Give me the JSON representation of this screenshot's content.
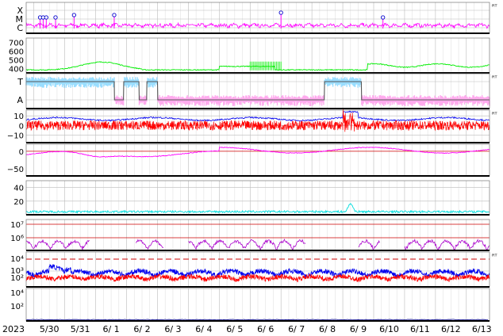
{
  "year_label": "2023",
  "right_marker": "ᴿᵀ",
  "chart_data": {
    "type": "line",
    "x_ticks": [
      "5/30",
      "5/31",
      "6/ 1",
      "6/ 2",
      "6/ 3",
      "6/ 4",
      "6/ 5",
      "6/ 6",
      "6/ 7",
      "6/ 8",
      "6/ 9",
      "6/10",
      "6/11",
      "6/12",
      "6/13"
    ],
    "grid": true,
    "colors": {
      "magenta": "#ff00ff",
      "green": "#00ee00",
      "lightblue": "#99ddff",
      "pink": "#ffaaee",
      "grey": "#555555",
      "red": "#ff0000",
      "blue": "#0000ee",
      "cyan": "#00dddd",
      "purple": "#aa00cc",
      "navy": "#000088"
    },
    "panels": [
      {
        "id": "flare",
        "labels": [
          "X",
          "M",
          "C"
        ],
        "right_marker": true,
        "events_day": [
          0.2,
          0.3,
          0.4,
          0.7,
          1.3,
          2.6,
          8.0,
          11.3
        ]
      },
      {
        "id": "speed",
        "ticks": [
          "700",
          "600",
          "500",
          "400"
        ],
        "ylim": [
          350,
          750
        ]
      },
      {
        "id": "sector",
        "labels": [
          "T",
          "A"
        ],
        "right_marker": true
      },
      {
        "id": "bfield",
        "ticks": [
          "10",
          "0",
          "−10"
        ],
        "ylim": [
          -18,
          16
        ],
        "right_marker": true
      },
      {
        "id": "bz",
        "ticks": [
          "0",
          "−50"
        ],
        "ylim": [
          -70,
          20
        ]
      },
      {
        "id": "density",
        "ticks": [
          "40",
          "20"
        ],
        "ylim": [
          0,
          50
        ]
      },
      {
        "id": "proton",
        "ticks": [
          "10⁷",
          "10⁶"
        ],
        "log": true
      },
      {
        "id": "electron",
        "ticks": [
          "10⁴",
          "10³",
          "10²"
        ],
        "log": true,
        "right_marker": true
      },
      {
        "id": "extra",
        "ticks": [
          "10⁴",
          "10²"
        ],
        "log": true
      }
    ]
  }
}
